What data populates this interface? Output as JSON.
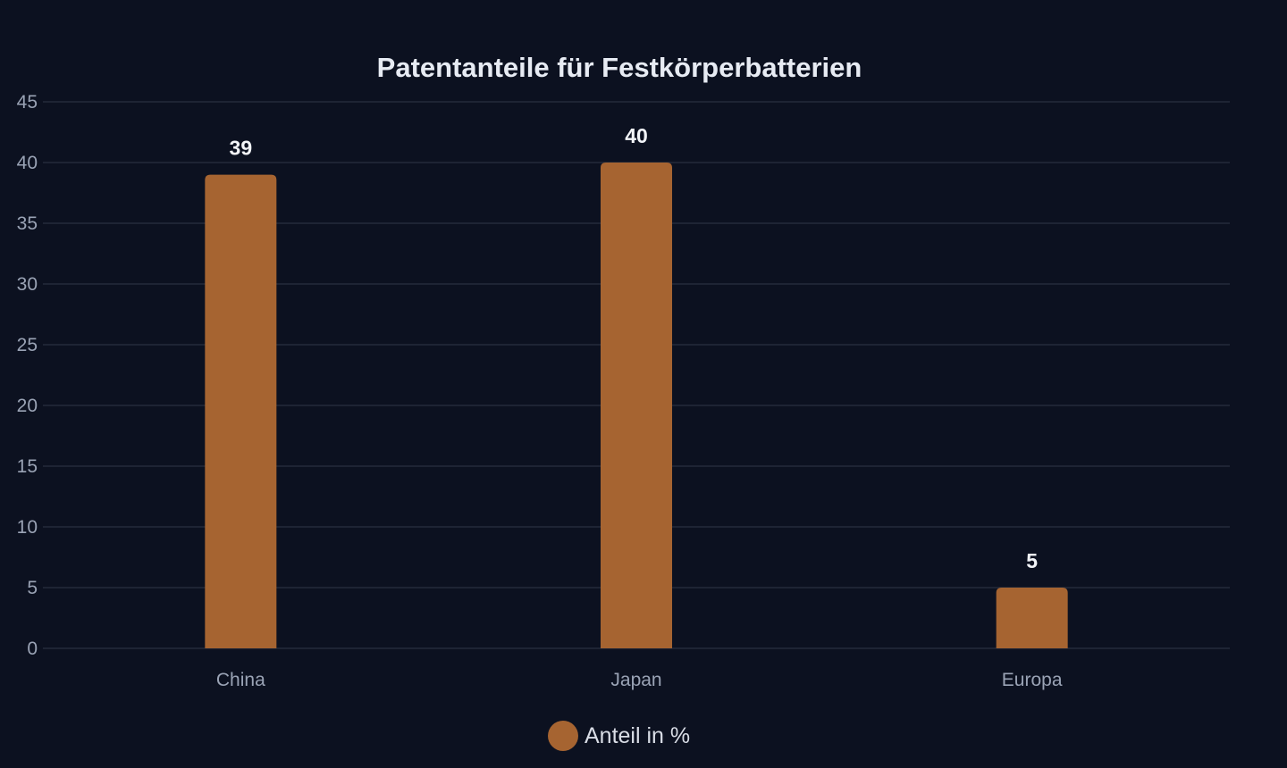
{
  "chart_data": {
    "type": "bar",
    "title": "Patentanteile für Festkörperbatterien",
    "xlabel": "",
    "ylabel": "",
    "categories": [
      "China",
      "Japan",
      "Europa"
    ],
    "series": [
      {
        "name": "Anteil in %",
        "values": [
          39,
          40,
          5
        ],
        "color": "#a66431"
      }
    ],
    "ylim": [
      0,
      45
    ],
    "yticks": [
      0,
      5,
      10,
      15,
      20,
      25,
      30,
      35,
      40,
      45
    ],
    "grid": true,
    "legend_position": "bottom-center",
    "data_labels": true
  },
  "colors": {
    "background": "#0c1120",
    "bar": "#a66431",
    "grid": "#1e2434"
  }
}
